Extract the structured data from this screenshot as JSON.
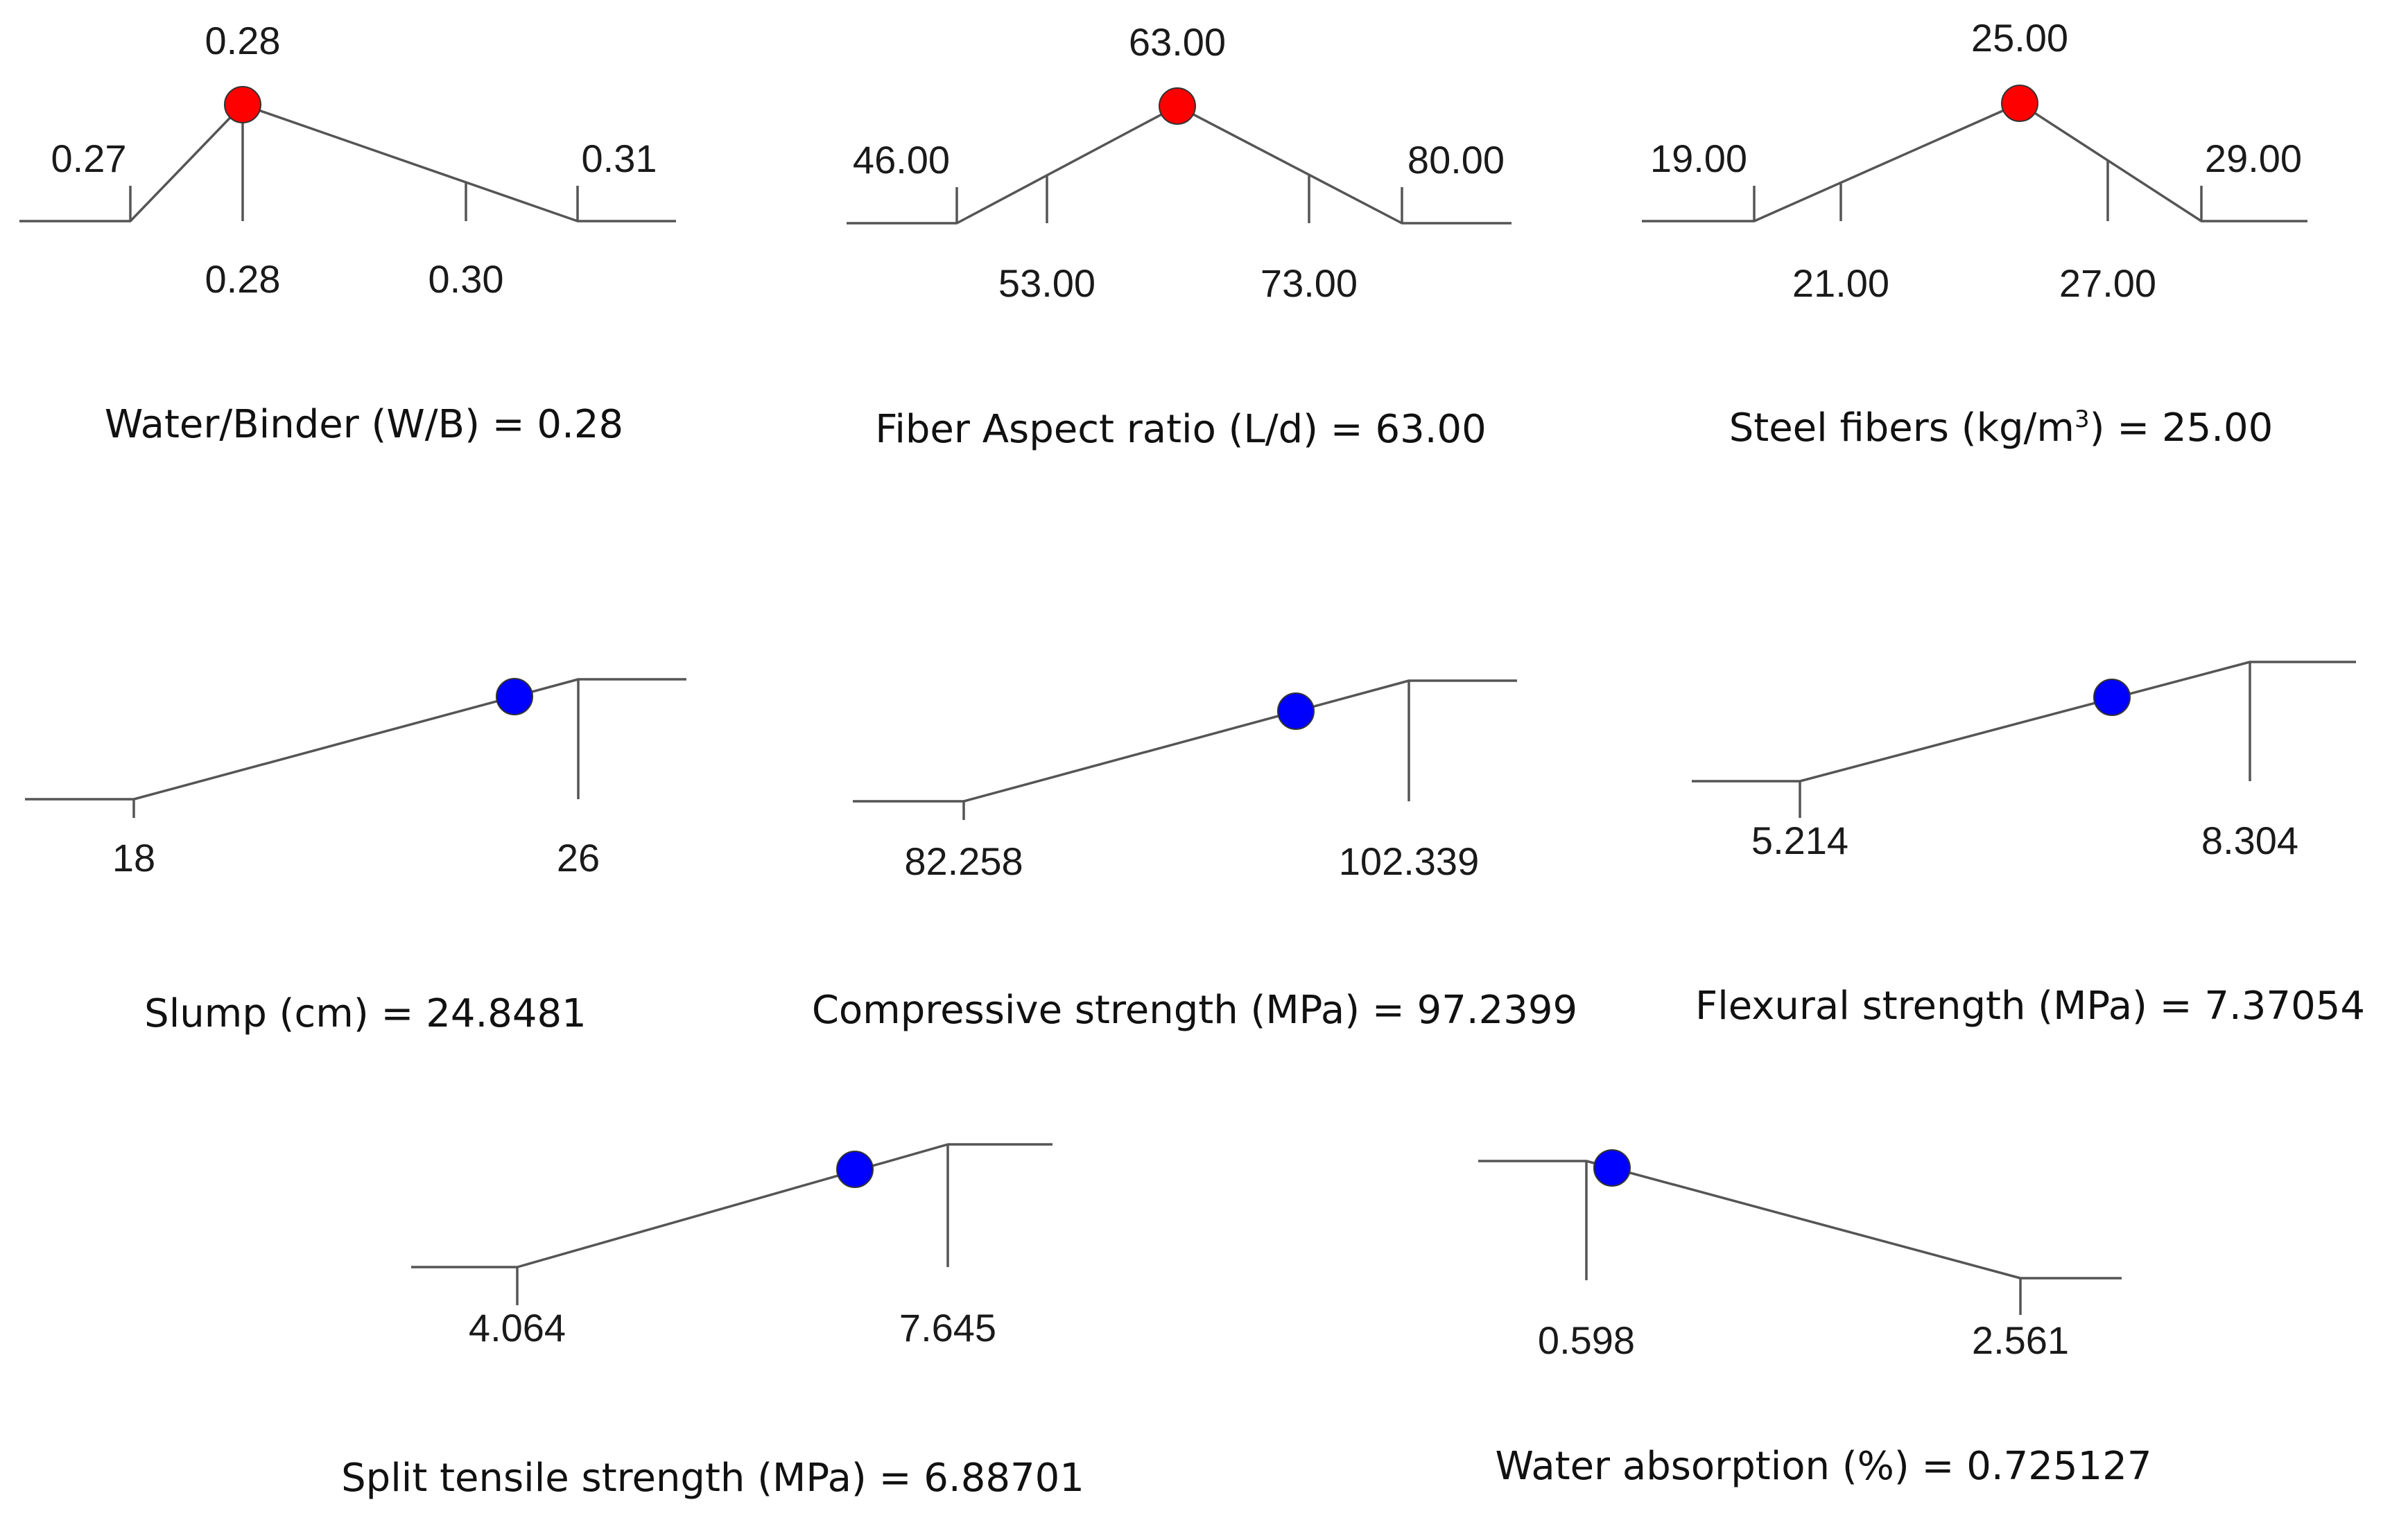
{
  "colors": {
    "factor_marker": "#ff0000",
    "response_marker": "#0000ff",
    "line": "#555555",
    "text": "#111111"
  },
  "chart_data": [
    {
      "id": "water-binder",
      "type": "line",
      "kind": "factor",
      "caption": "Water/Binder (W/B) = 0.28",
      "selected_label": "0.28",
      "x": [
        0.27,
        0.28,
        0.3,
        0.31
      ],
      "tick_labels_top": [
        "0.27",
        "0.31"
      ],
      "tick_labels_bottom": [
        "0.28",
        "0.30"
      ],
      "selected": 0.28
    },
    {
      "id": "fiber-aspect-ratio",
      "type": "line",
      "kind": "factor",
      "caption": "Fiber Aspect ratio (L/d) = 63.00",
      "selected_label": "63.00",
      "x": [
        46,
        53,
        63,
        73,
        80
      ],
      "tick_labels_top": [
        "46.00",
        "80.00"
      ],
      "tick_labels_bottom": [
        "53.00",
        "73.00"
      ],
      "selected": 63.0
    },
    {
      "id": "steel-fibers",
      "type": "line",
      "kind": "factor",
      "caption_main": "Steel fibers (kg/m",
      "caption_sup": "3",
      "caption_tail": ") = 25.00",
      "selected_label": "25.00",
      "x": [
        19,
        21,
        25,
        27,
        29
      ],
      "tick_labels_top": [
        "19.00",
        "29.00"
      ],
      "tick_labels_bottom": [
        "21.00",
        "27.00"
      ],
      "selected": 25.0
    },
    {
      "id": "slump",
      "type": "line",
      "kind": "response",
      "direction": "maximize",
      "caption": "Slump (cm) = 24.8481",
      "low": 18,
      "high": 26,
      "value": 24.8481,
      "tick_labels": [
        "18",
        "26"
      ]
    },
    {
      "id": "compressive-strength",
      "type": "line",
      "kind": "response",
      "direction": "maximize",
      "caption": "Compressive strength (MPa) = 97.2399",
      "low": 82.258,
      "high": 102.339,
      "value": 97.2399,
      "tick_labels": [
        "82.258",
        "102.339"
      ]
    },
    {
      "id": "flexural-strength",
      "type": "line",
      "kind": "response",
      "direction": "maximize",
      "caption": "Flexural strength (MPa) = 7.37054",
      "low": 5.214,
      "high": 8.304,
      "value": 7.37054,
      "tick_labels": [
        "5.214",
        "8.304"
      ]
    },
    {
      "id": "split-tensile-strength",
      "type": "line",
      "kind": "response",
      "direction": "maximize",
      "caption": "Split tensile strength (MPa) = 6.88701",
      "low": 4.064,
      "high": 7.645,
      "value": 6.88701,
      "tick_labels": [
        "4.064",
        "7.645"
      ]
    },
    {
      "id": "water-absorption",
      "type": "line",
      "kind": "response",
      "direction": "minimize",
      "caption": "Water absorption (%) = 0.725127",
      "low": 0.598,
      "high": 2.561,
      "value": 0.725127,
      "tick_labels": [
        "0.598",
        "2.561"
      ]
    }
  ]
}
